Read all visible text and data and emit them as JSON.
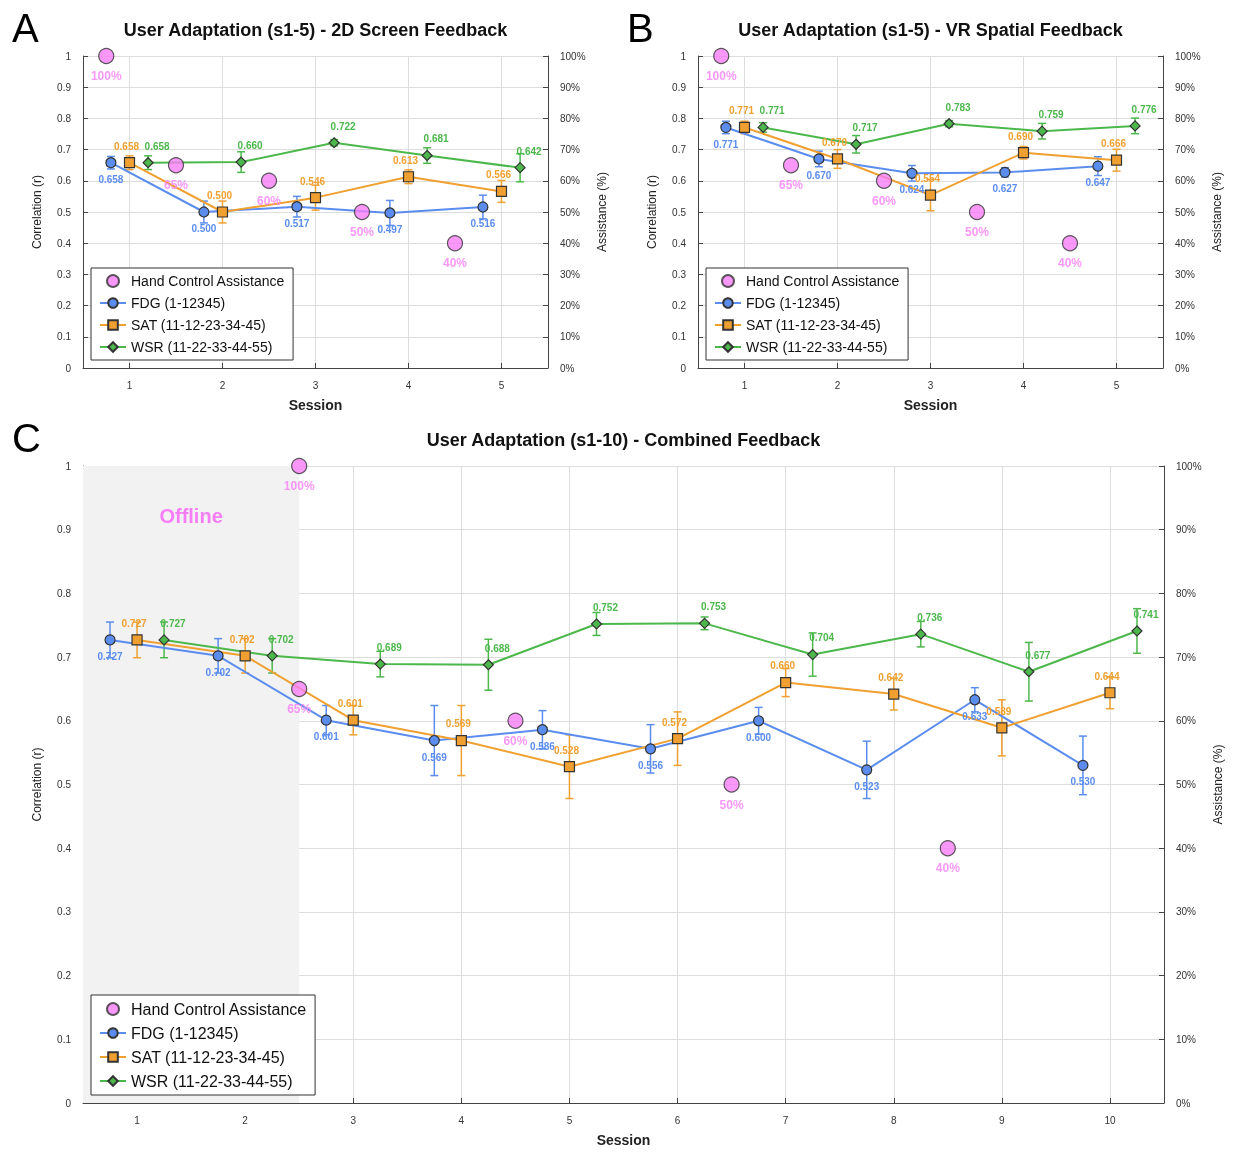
{
  "chart_data": [
    {
      "type": "line",
      "title": "User Adaptation (s1-5) - 2D Screen Feedback",
      "annotations": [
        "A"
      ],
      "xlabel": "Session",
      "ylabel": "Correlation (r)",
      "y2label": "Assistance (%)",
      "xlim": [
        0.5,
        5.5
      ],
      "xticks": [
        1,
        2,
        3,
        4,
        5
      ],
      "ylim": [
        0,
        1
      ],
      "yticks": [
        0,
        0.1,
        0.2,
        0.3,
        0.4,
        0.5,
        0.6,
        0.7,
        0.8,
        0.9,
        1
      ],
      "y2lim": [
        0,
        100
      ],
      "y2ticks": [
        {
          "value": 0,
          "label": "0%"
        },
        {
          "value": 10,
          "label": "10%"
        },
        {
          "value": 20,
          "label": "20%"
        },
        {
          "value": 30,
          "label": "30%"
        },
        {
          "value": 40,
          "label": "40%"
        },
        {
          "value": 50,
          "label": "50%"
        },
        {
          "value": 60,
          "label": "60%"
        },
        {
          "value": 70,
          "label": "70%"
        },
        {
          "value": 80,
          "label": "80%"
        },
        {
          "value": 90,
          "label": "90%"
        },
        {
          "value": 100,
          "label": "100%"
        }
      ],
      "grid": true,
      "legend": "bottom left",
      "series": [
        {
          "name": "Hand Control Assistance",
          "type": "scatter",
          "axis": "y2",
          "marker": "circle",
          "color": "#f77ef7",
          "x": [
            0.75,
            1.5,
            2.5,
            3.5,
            4.5
          ],
          "values": [
            100,
            65,
            60,
            50,
            40
          ],
          "value_labels": [
            "100%",
            "65%",
            "60%",
            "50%",
            "40%"
          ]
        },
        {
          "name": "FDG (1-12345)",
          "marker": "circle",
          "color": "#5b8def",
          "x": [
            0.8,
            1.8,
            2.8,
            3.8,
            4.8
          ],
          "values": [
            0.658,
            0.5,
            0.517,
            0.497,
            0.516
          ],
          "errors": [
            0.02,
            0.035,
            0.033,
            0.04,
            0.038
          ],
          "value_labels": [
            "0.658",
            "0.500",
            "0.517",
            "0.497",
            "0.516"
          ]
        },
        {
          "name": "SAT (11-12-23-34-45)",
          "marker": "square",
          "color": "#f0a030",
          "x": [
            1,
            2,
            3,
            4,
            5
          ],
          "values": [
            0.658,
            0.5,
            0.546,
            0.613,
            0.566
          ],
          "errors": [
            0.022,
            0.035,
            0.04,
            0.022,
            0.035
          ],
          "value_labels": [
            "0.658",
            "0.500",
            "0.546",
            "0.613",
            "0.566"
          ]
        },
        {
          "name": "WSR (11-22-33-44-55)",
          "marker": "diamond",
          "color": "#4cb84c",
          "x": [
            1.2,
            2.2,
            3.2,
            4.2,
            5.2
          ],
          "values": [
            0.658,
            0.66,
            0.722,
            0.681,
            0.642
          ],
          "errors": [
            0.022,
            0.033,
            0.01,
            0.025,
            0.045
          ],
          "value_labels": [
            "0.658",
            "0.660",
            "0.722",
            "0.681",
            "0.642"
          ]
        }
      ]
    },
    {
      "type": "line",
      "title": "User Adaptation (s1-5) - VR Spatial Feedback",
      "annotations": [
        "B"
      ],
      "xlabel": "Session",
      "ylabel": "Correlation (r)",
      "y2label": "Assistance (%)",
      "xlim": [
        0.5,
        5.5
      ],
      "xticks": [
        1,
        2,
        3,
        4,
        5
      ],
      "ylim": [
        0,
        1
      ],
      "yticks": [
        0,
        0.1,
        0.2,
        0.3,
        0.4,
        0.5,
        0.6,
        0.7,
        0.8,
        0.9,
        1
      ],
      "y2lim": [
        0,
        100
      ],
      "y2ticks": [
        {
          "value": 0,
          "label": "0%"
        },
        {
          "value": 10,
          "label": "10%"
        },
        {
          "value": 20,
          "label": "20%"
        },
        {
          "value": 30,
          "label": "30%"
        },
        {
          "value": 40,
          "label": "40%"
        },
        {
          "value": 50,
          "label": "50%"
        },
        {
          "value": 60,
          "label": "60%"
        },
        {
          "value": 70,
          "label": "70%"
        },
        {
          "value": 80,
          "label": "80%"
        },
        {
          "value": 90,
          "label": "90%"
        },
        {
          "value": 100,
          "label": "100%"
        }
      ],
      "grid": true,
      "legend": "bottom left",
      "series": [
        {
          "name": "Hand Control Assistance",
          "type": "scatter",
          "axis": "y2",
          "marker": "circle",
          "color": "#f77ef7",
          "x": [
            0.75,
            1.5,
            2.5,
            3.5,
            4.5
          ],
          "values": [
            100,
            65,
            60,
            50,
            40
          ],
          "value_labels": [
            "100%",
            "65%",
            "60%",
            "50%",
            "40%"
          ]
        },
        {
          "name": "FDG (1-12345)",
          "marker": "circle",
          "color": "#5b8def",
          "x": [
            0.8,
            1.8,
            2.8,
            3.8,
            4.8
          ],
          "values": [
            0.771,
            0.67,
            0.624,
            0.627,
            0.647
          ],
          "errors": [
            0.02,
            0.025,
            0.025,
            0.015,
            0.03
          ],
          "value_labels": [
            "0.771",
            "0.670",
            "0.624",
            "0.627",
            "0.647"
          ]
        },
        {
          "name": "SAT (11-12-23-34-45)",
          "marker": "square",
          "color": "#f0a030",
          "x": [
            1,
            2,
            3,
            4,
            5
          ],
          "values": [
            0.771,
            0.67,
            0.554,
            0.69,
            0.666
          ],
          "errors": [
            0.02,
            0.03,
            0.05,
            0.02,
            0.035
          ],
          "value_labels": [
            "0.771",
            "0.670",
            "0.554",
            "0.690",
            "0.666"
          ]
        },
        {
          "name": "WSR (11-22-33-44-55)",
          "marker": "diamond",
          "color": "#4cb84c",
          "x": [
            1.2,
            2.2,
            3.2,
            4.2,
            5.2
          ],
          "values": [
            0.771,
            0.717,
            0.783,
            0.759,
            0.776
          ],
          "errors": [
            0.015,
            0.028,
            0.01,
            0.025,
            0.025
          ],
          "value_labels": [
            "0.771",
            "0.717",
            "0.783",
            "0.759",
            "0.776"
          ]
        }
      ]
    },
    {
      "type": "line",
      "title": "User Adaptation (s1-10) - Combined Feedback",
      "annotations": [
        "C"
      ],
      "xlabel": "Session",
      "ylabel": "Correlation (r)",
      "y2label": "Assistance (%)",
      "xlim": [
        0.5,
        10.5
      ],
      "xticks": [
        1,
        2,
        3,
        4,
        5,
        6,
        7,
        8,
        9,
        10
      ],
      "ylim": [
        0,
        1
      ],
      "yticks": [
        0,
        0.1,
        0.2,
        0.3,
        0.4,
        0.5,
        0.6,
        0.7,
        0.8,
        0.9,
        1
      ],
      "y2lim": [
        0,
        100
      ],
      "y2ticks": [
        {
          "value": 0,
          "label": "0%"
        },
        {
          "value": 10,
          "label": "10%"
        },
        {
          "value": 20,
          "label": "20%"
        },
        {
          "value": 30,
          "label": "30%"
        },
        {
          "value": 40,
          "label": "40%"
        },
        {
          "value": 50,
          "label": "50%"
        },
        {
          "value": 60,
          "label": "60%"
        },
        {
          "value": 70,
          "label": "70%"
        },
        {
          "value": 80,
          "label": "80%"
        },
        {
          "value": 90,
          "label": "90%"
        },
        {
          "value": 100,
          "label": "100%"
        }
      ],
      "grid": true,
      "legend": "bottom left",
      "bands": [
        {
          "axis": "x",
          "from": 0.5,
          "to": 2.5,
          "label": "Offline",
          "color": "#f2f2f2"
        }
      ],
      "series": [
        {
          "name": "Hand Control Assistance",
          "type": "scatter",
          "axis": "y2",
          "marker": "circle",
          "color": "#f77ef7",
          "x": [
            2.5,
            2.5,
            4.5,
            6.5,
            8.5
          ],
          "values": [
            100,
            65,
            60,
            50,
            40
          ],
          "value_labels": [
            "100%",
            "65%",
            "60%",
            "50%",
            "40%"
          ]
        },
        {
          "name": "FDG (1-12345)",
          "marker": "circle",
          "color": "#5b8def",
          "x": [
            0.75,
            1.75,
            2.75,
            3.75,
            4.75,
            5.75,
            6.75,
            7.75,
            8.75,
            9.75
          ],
          "values": [
            0.727,
            0.702,
            0.601,
            0.569,
            0.586,
            0.556,
            0.6,
            0.523,
            0.633,
            0.53
          ],
          "errors": [
            0.028,
            0.027,
            0.023,
            0.055,
            0.03,
            0.038,
            0.021,
            0.045,
            0.019,
            0.046
          ],
          "value_labels": [
            "0.727",
            "0.702",
            "0.601",
            "0.569",
            "0.586",
            "0.556",
            "0.600",
            "0.523",
            "0.633",
            "0.530"
          ]
        },
        {
          "name": "SAT (11-12-23-34-45)",
          "marker": "square",
          "color": "#f0a030",
          "x": [
            1,
            2,
            3,
            4,
            5,
            6,
            7,
            8,
            9,
            10
          ],
          "values": [
            0.727,
            0.702,
            0.601,
            0.569,
            0.528,
            0.572,
            0.66,
            0.642,
            0.589,
            0.644
          ],
          "errors": [
            0.028,
            0.027,
            0.023,
            0.055,
            0.05,
            0.042,
            0.022,
            0.025,
            0.044,
            0.025
          ],
          "value_labels": [
            "0.727",
            "0.702",
            "0.601",
            "0.569",
            "0.528",
            "0.572",
            "0.660",
            "0.642",
            "0.589",
            "0.644"
          ]
        },
        {
          "name": "WSR (11-22-33-44-55)",
          "marker": "diamond",
          "color": "#4cb84c",
          "x": [
            1.25,
            2.25,
            3.25,
            4.25,
            5.25,
            6.25,
            7.25,
            8.25,
            9.25,
            10.25
          ],
          "values": [
            0.727,
            0.702,
            0.689,
            0.688,
            0.752,
            0.753,
            0.704,
            0.736,
            0.677,
            0.741
          ],
          "errors": [
            0.028,
            0.027,
            0.02,
            0.04,
            0.018,
            0.01,
            0.034,
            0.02,
            0.046,
            0.035
          ],
          "value_labels": [
            "0.727",
            "0.702",
            "0.689",
            "0.688",
            "0.752",
            "0.753",
            "0.704",
            "0.736",
            "0.677",
            "0.741"
          ]
        }
      ]
    }
  ]
}
